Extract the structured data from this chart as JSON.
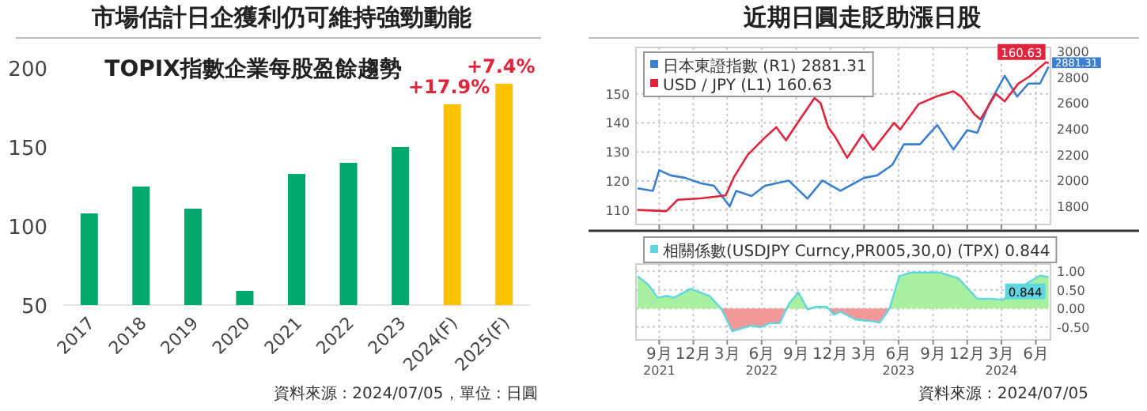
{
  "chart_data": [
    {
      "type": "bar",
      "title": "市場估計日企獲利仍可維持強勁動能",
      "subtitle": "TOPIX指數企業每股盈餘趨勢",
      "categories": [
        "2017",
        "2018",
        "2019",
        "2020",
        "2021",
        "2022",
        "2023",
        "2024(F)",
        "2025(F)"
      ],
      "values": [
        108,
        125,
        111,
        59,
        133,
        140,
        150,
        177,
        190
      ],
      "colors": [
        "#00a86b",
        "#00a86b",
        "#00a86b",
        "#00a86b",
        "#00a86b",
        "#00a86b",
        "#00a86b",
        "#ffc000",
        "#ffc000"
      ],
      "ylim": [
        50,
        200
      ],
      "yticks": [
        50,
        100,
        150,
        200
      ],
      "annotations": [
        {
          "text": "+17.9%",
          "x": "2024(F)",
          "y": 177
        },
        {
          "text": "+7.4%",
          "x": "2025(F)",
          "y": 190
        },
        "資料來源 : 2024/07/05，單位 : 日圓"
      ]
    },
    {
      "type": "line",
      "title": "近期日圓走貶助漲日股",
      "series": [
        {
          "name": "日本東證指數 (R1) 2881.31",
          "color": "#3a7fd0",
          "axis": "y2",
          "x": [
            "2021-07-05",
            "2021-08-15",
            "2021-09-01",
            "2021-10-01",
            "2021-11-10",
            "2021-12-20",
            "2022-01-25",
            "2022-03-08",
            "2022-03-25",
            "2022-05-05",
            "2022-06-10",
            "2022-08-12",
            "2022-10-01",
            "2022-11-10",
            "2022-12-28",
            "2023-03-01",
            "2023-04-05",
            "2023-05-15",
            "2023-06-15",
            "2023-07-28",
            "2023-09-12",
            "2023-10-25",
            "2023-12-01",
            "2023-12-28",
            "2024-01-28",
            "2024-03-10",
            "2024-04-12",
            "2024-05-12",
            "2024-06-12",
            "2024-07-05"
          ],
          "values": [
            1940,
            1920,
            2080,
            2040,
            2020,
            1980,
            1960,
            1800,
            1920,
            1880,
            1960,
            2000,
            1860,
            2000,
            1920,
            2020,
            2040,
            2120,
            2280,
            2280,
            2430,
            2240,
            2390,
            2370,
            2590,
            2810,
            2650,
            2750,
            2750,
            2881.31
          ],
          "value_labels": [
            null,
            null,
            null,
            null,
            null,
            null,
            null,
            null,
            null,
            null,
            null,
            null,
            null,
            null,
            null,
            null,
            null,
            null,
            null,
            null,
            null,
            null,
            null,
            null,
            null,
            null,
            null,
            null,
            null,
            "2881.31"
          ]
        },
        {
          "name": "USD / JPY (L1) 160.63",
          "color": "#e0243c",
          "x": [
            "2021-07-05",
            "2021-09-20",
            "2021-10-20",
            "2021-12-20",
            "2022-02-25",
            "2022-03-20",
            "2022-04-25",
            "2022-06-10",
            "2022-07-10",
            "2022-08-05",
            "2022-09-10",
            "2022-10-20",
            "2022-11-05",
            "2022-11-25",
            "2022-12-15",
            "2023-01-15",
            "2023-02-25",
            "2023-03-25",
            "2023-05-20",
            "2023-06-05",
            "2023-07-25",
            "2023-09-10",
            "2023-10-25",
            "2023-11-15",
            "2023-12-20",
            "2024-01-05",
            "2024-02-15",
            "2024-03-10",
            "2024-04-15",
            "2024-05-15",
            "2024-06-28",
            "2024-07-05"
          ],
          "values": [
            110,
            109.6,
            113.5,
            114,
            115,
            121.5,
            129,
            135,
            138.5,
            134,
            141,
            148.6,
            146.8,
            138.6,
            135,
            128,
            136,
            130.7,
            140,
            137.7,
            146.5,
            149.1,
            150.9,
            149,
            143,
            141.2,
            150,
            147.4,
            153.5,
            156,
            160.9,
            160.63
          ],
          "value_labels": [
            null,
            null,
            null,
            null,
            null,
            null,
            null,
            null,
            null,
            null,
            null,
            null,
            null,
            null,
            null,
            null,
            null,
            null,
            null,
            null,
            null,
            null,
            null,
            null,
            null,
            null,
            null,
            null,
            null,
            null,
            null,
            "160.63"
          ]
        }
      ],
      "xlim": [
        "2021-07-01",
        "2024-07-10"
      ],
      "xticks": [
        {
          "value": "2021-09-01",
          "label": null
        },
        {
          "value": "2021-12-01",
          "label": null
        },
        {
          "value": "2022-03-01",
          "label": null
        },
        {
          "value": "2022-06-01",
          "label": null
        },
        {
          "value": "2022-09-01",
          "label": null
        },
        {
          "value": "2022-12-01",
          "label": null
        },
        {
          "value": "2023-03-01",
          "label": null
        },
        {
          "value": "2023-06-01",
          "label": null
        },
        {
          "value": "2023-09-01",
          "label": null
        },
        {
          "value": "2023-12-01",
          "label": null
        },
        {
          "value": "2024-03-01",
          "label": null
        },
        {
          "value": "2024-06-01",
          "label": null
        }
      ],
      "ylim": [
        105,
        166
      ],
      "yticks": [
        110,
        120,
        130,
        140,
        150
      ],
      "y2lim": [
        1660,
        3030
      ],
      "y2ticks": [
        1800,
        2000,
        2200,
        2400,
        2600,
        2800,
        3000
      ],
      "grid": true,
      "legend": "top left",
      "tick_labels": "y",
      "line_style": "solid"
    },
    {
      "type": "area",
      "series": [
        {
          "name": "相關係數(USDJPY Curncy,PR005,30,0) (TPX) 0.844",
          "color": "#5fd6e0",
          "colors": [
            "#a6f0a0",
            "#a6f0a0",
            "#a6f0a0",
            "#a6f0a0",
            "#a6f0a0",
            "#a6f0a0",
            "#a6f0a0",
            "#a6f0a0",
            "#f29a9a",
            "#f29a9a",
            "#f29a9a",
            "#f29a9a",
            "#f29a9a",
            "#a6f0a0",
            "#a6f0a0",
            "#f29a9a",
            "#a6f0a0",
            "#a6f0a0",
            "#f29a9a",
            "#f29a9a",
            "#f29a9a",
            "#f29a9a",
            "#f29a9a",
            "#a6f0a0",
            "#a6f0a0",
            "#a6f0a0",
            "#a6f0a0",
            "#a6f0a0",
            "#a6f0a0",
            "#a6f0a0",
            "#a6f0a0",
            "#a6f0a0",
            "#a6f0a0",
            "#a6f0a0"
          ],
          "x": [
            "2021-07-05",
            "2021-08-03",
            "2021-08-28",
            "2021-09-21",
            "2021-10-10",
            "2021-11-23",
            "2022-01-13",
            "2022-02-13",
            "2022-03-15",
            "2022-05-04",
            "2022-05-28",
            "2022-06-23",
            "2022-07-19",
            "2022-08-13",
            "2022-09-07",
            "2022-10-02",
            "2022-10-21",
            "2022-11-22",
            "2022-12-10",
            "2022-12-28",
            "2023-02-06",
            "2023-03-25",
            "2023-04-12",
            "2023-05-08",
            "2023-06-03",
            "2023-07-04",
            "2023-09-19",
            "2023-11-07",
            "2023-12-28",
            "2024-02-03",
            "2024-03-04",
            "2024-05-13",
            "2024-06-13",
            "2024-07-05"
          ],
          "values": [
            0.87,
            0.64,
            0.29,
            0.34,
            0.29,
            0.53,
            0.34,
            0,
            -0.62,
            -0.46,
            -0.51,
            -0.4,
            -0.4,
            0.13,
            0.43,
            -0.03,
            0.04,
            0.04,
            -0.17,
            -0.09,
            -0.3,
            -0.35,
            -0.38,
            0,
            0.87,
            0.97,
            0.97,
            0.82,
            0.26,
            0.26,
            0.23,
            0.71,
            0.89,
            0.844
          ],
          "value_labels": [
            null,
            null,
            null,
            null,
            null,
            null,
            null,
            null,
            null,
            null,
            null,
            null,
            null,
            null,
            null,
            null,
            null,
            null,
            null,
            null,
            null,
            null,
            null,
            null,
            null,
            null,
            null,
            null,
            null,
            null,
            null,
            null,
            null,
            "0.844"
          ]
        }
      ],
      "xlim": [
        "2021-07-01",
        "2024-07-10"
      ],
      "xticks": [
        {
          "value": "2021-09-01",
          "label": "9月\n2021"
        },
        {
          "value": "2021-12-01",
          "label": "12月"
        },
        {
          "value": "2022-03-01",
          "label": "3月"
        },
        {
          "value": "2022-06-01",
          "label": "6月\n2022"
        },
        {
          "value": "2022-09-01",
          "label": "9月"
        },
        {
          "value": "2022-12-01",
          "label": "12月"
        },
        {
          "value": "2023-03-01",
          "label": "3月"
        },
        {
          "value": "2023-06-01",
          "label": "6月\n2023"
        },
        {
          "value": "2023-09-01",
          "label": "9月"
        },
        {
          "value": "2023-12-01",
          "label": "12月"
        },
        {
          "value": "2024-03-01",
          "label": "3月\n2024"
        },
        {
          "value": "2024-06-01",
          "label": "6月"
        }
      ],
      "ylim": [
        -0.85,
        1.2
      ],
      "yticks": [
        {
          "value": 1,
          "label": "1.00"
        },
        {
          "value": 0.5,
          "label": "0.50"
        },
        {
          "value": 0,
          "label": "0.00"
        },
        {
          "value": -0.5,
          "label": "-0.50"
        }
      ],
      "grid": true,
      "legend": "top left",
      "annotations": [
        "資料來源 : 2024/07/05"
      ]
    }
  ]
}
